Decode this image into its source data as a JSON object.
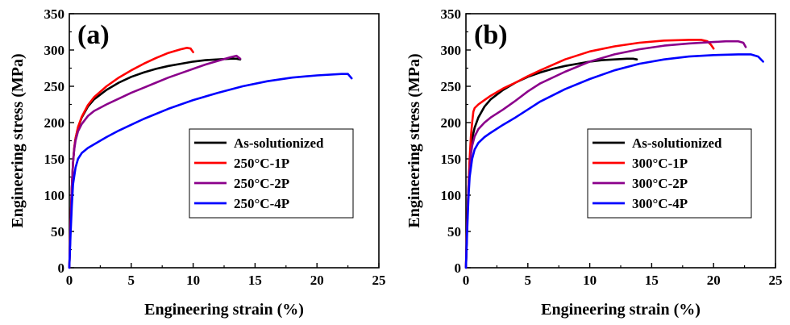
{
  "chart_data": [
    {
      "type": "line",
      "panel_label": "(a)",
      "xlabel": "Engineering strain (%)",
      "ylabel": "Engineering stress (MPa)",
      "xlim": [
        0,
        25
      ],
      "ylim": [
        0,
        350
      ],
      "xticks": [
        0,
        5,
        10,
        15,
        20,
        25
      ],
      "yticks": [
        0,
        50,
        100,
        150,
        200,
        250,
        300,
        350
      ],
      "grid": false,
      "legend_position": "center-right",
      "series": [
        {
          "name": "As-solutionized",
          "color": "#000000",
          "x": [
            0,
            0.1,
            0.2,
            0.3,
            0.4,
            0.5,
            0.7,
            1,
            1.5,
            2,
            3,
            4,
            5,
            6,
            7,
            8,
            9,
            10,
            11,
            12,
            13,
            13.5,
            13.8
          ],
          "y": [
            0,
            60,
            110,
            145,
            165,
            178,
            193,
            207,
            222,
            232,
            245,
            255,
            263,
            269,
            274,
            278,
            281,
            284,
            286,
            287,
            288,
            288,
            287
          ]
        },
        {
          "name": "250°C-1P",
          "color": "#ff0000",
          "x": [
            0,
            0.1,
            0.2,
            0.3,
            0.4,
            0.5,
            0.7,
            1,
            1.5,
            2,
            3,
            4,
            5,
            6,
            7,
            8,
            9,
            9.5,
            9.8,
            10
          ],
          "y": [
            0,
            60,
            110,
            145,
            165,
            178,
            194,
            208,
            224,
            235,
            250,
            262,
            272,
            281,
            289,
            296,
            301,
            303,
            302,
            297
          ]
        },
        {
          "name": "250°C-2P",
          "color": "#8b008b",
          "x": [
            0,
            0.1,
            0.2,
            0.3,
            0.4,
            0.5,
            0.7,
            1,
            1.5,
            2,
            3,
            4,
            5,
            6,
            7,
            8,
            9,
            10,
            11,
            12,
            13,
            13.5,
            13.8
          ],
          "y": [
            0,
            60,
            110,
            145,
            163,
            175,
            188,
            198,
            209,
            216,
            225,
            233,
            241,
            248,
            255,
            262,
            268,
            274,
            280,
            285,
            290,
            292,
            288
          ]
        },
        {
          "name": "250°C-4P",
          "color": "#0000ff",
          "x": [
            0,
            0.1,
            0.2,
            0.3,
            0.5,
            0.7,
            1,
            1.5,
            2,
            3,
            4,
            5,
            6,
            8,
            10,
            12,
            14,
            16,
            18,
            20,
            22,
            22.5,
            22.8
          ],
          "y": [
            0,
            45,
            85,
            115,
            138,
            150,
            158,
            165,
            170,
            180,
            189,
            197,
            205,
            219,
            231,
            241,
            250,
            257,
            262,
            265,
            267,
            267,
            261
          ]
        }
      ]
    },
    {
      "type": "line",
      "panel_label": "(b)",
      "xlabel": "Engineering strain (%)",
      "ylabel": "Engineering stress (MPa)",
      "xlim": [
        0,
        25
      ],
      "ylim": [
        0,
        350
      ],
      "xticks": [
        0,
        5,
        10,
        15,
        20,
        25
      ],
      "yticks": [
        0,
        50,
        100,
        150,
        200,
        250,
        300,
        350
      ],
      "grid": false,
      "legend_position": "center-right",
      "series": [
        {
          "name": "As-solutionized",
          "color": "#000000",
          "x": [
            0,
            0.1,
            0.2,
            0.3,
            0.4,
            0.5,
            0.7,
            1,
            1.5,
            2,
            3,
            4,
            5,
            6,
            7,
            8,
            9,
            10,
            11,
            12,
            13,
            13.5,
            13.8
          ],
          "y": [
            0,
            60,
            110,
            145,
            165,
            178,
            193,
            207,
            222,
            232,
            245,
            255,
            263,
            269,
            274,
            278,
            281,
            284,
            286,
            287,
            288,
            288,
            287
          ]
        },
        {
          "name": "300°C-1P",
          "color": "#ff0000",
          "x": [
            0,
            0.1,
            0.2,
            0.3,
            0.4,
            0.5,
            0.6,
            0.7,
            1,
            1.5,
            2,
            3,
            4,
            5,
            6,
            8,
            10,
            12,
            14,
            16,
            18,
            19,
            19.5,
            19.8,
            20
          ],
          "y": [
            0,
            60,
            110,
            150,
            180,
            200,
            215,
            220,
            225,
            231,
            237,
            247,
            255,
            264,
            272,
            287,
            298,
            305,
            310,
            313,
            314,
            314,
            312,
            307,
            302
          ]
        },
        {
          "name": "300°C-2P",
          "color": "#8b008b",
          "x": [
            0,
            0.1,
            0.2,
            0.3,
            0.4,
            0.5,
            0.7,
            1,
            1.5,
            2,
            3,
            4,
            5,
            6,
            8,
            10,
            12,
            14,
            16,
            18,
            20,
            21,
            22,
            22.4,
            22.6
          ],
          "y": [
            0,
            60,
            105,
            135,
            155,
            168,
            181,
            191,
            200,
            207,
            218,
            230,
            243,
            254,
            270,
            284,
            294,
            301,
            306,
            309,
            311,
            312,
            312,
            310,
            304
          ]
        },
        {
          "name": "300°C-4P",
          "color": "#0000ff",
          "x": [
            0,
            0.1,
            0.2,
            0.3,
            0.5,
            0.7,
            1,
            1.5,
            2,
            3,
            4,
            5,
            6,
            8,
            10,
            12,
            14,
            16,
            18,
            20,
            22,
            23,
            23.6,
            24
          ],
          "y": [
            0,
            50,
            95,
            125,
            150,
            163,
            172,
            180,
            186,
            197,
            207,
            218,
            229,
            246,
            260,
            272,
            281,
            287,
            291,
            293,
            294,
            294,
            291,
            284
          ]
        }
      ]
    }
  ]
}
